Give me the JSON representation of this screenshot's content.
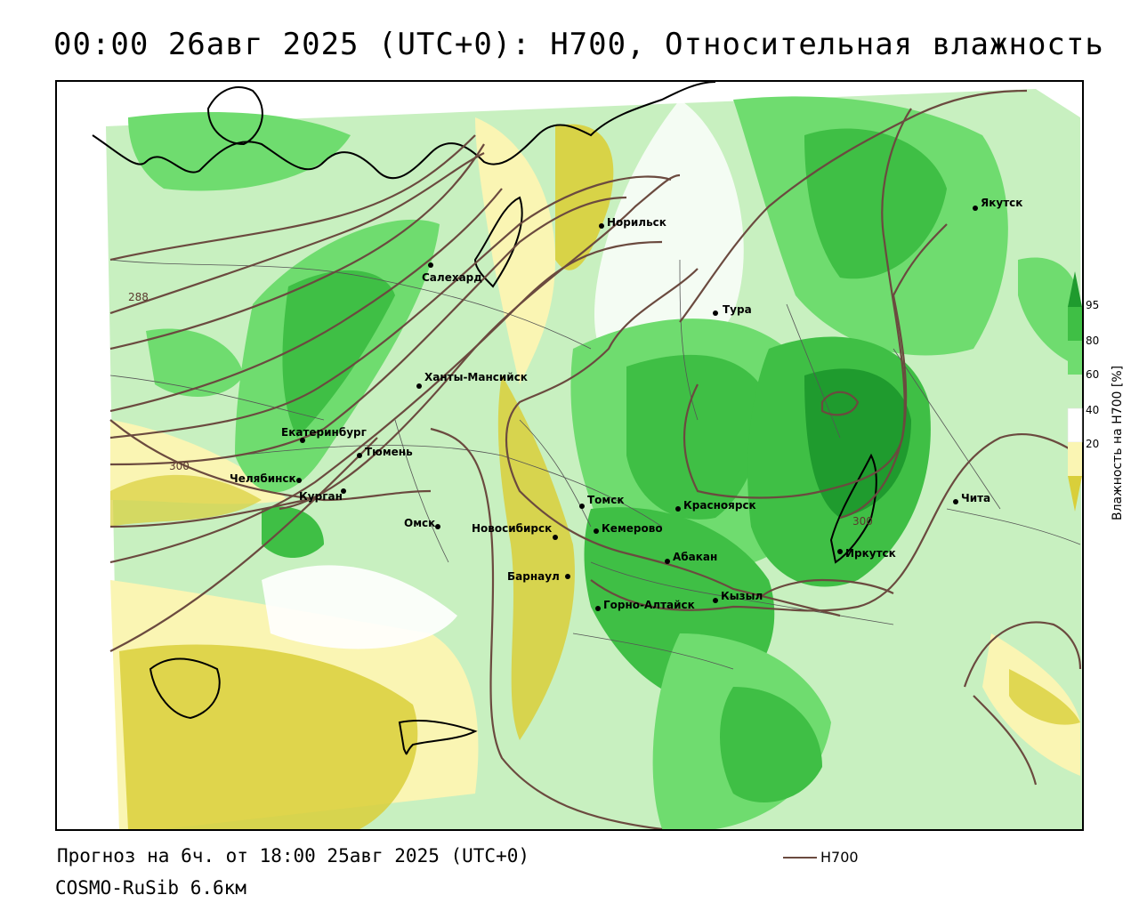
{
  "header": {
    "title": "00:00 26авг 2025 (UTC+0): H700, Относительная влажность"
  },
  "map": {
    "cities": [
      {
        "name": "Якутск"
      },
      {
        "name": "Норильск"
      },
      {
        "name": "Салехард"
      },
      {
        "name": "Тура"
      },
      {
        "name": "Ханты-Мансийск"
      },
      {
        "name": "Екатеринбург"
      },
      {
        "name": "Тюмень"
      },
      {
        "name": "Челябинск"
      },
      {
        "name": "Курган"
      },
      {
        "name": "Омск"
      },
      {
        "name": "Новосибирск"
      },
      {
        "name": "Томск"
      },
      {
        "name": "Кемерово"
      },
      {
        "name": "Красноярск"
      },
      {
        "name": "Абакан"
      },
      {
        "name": "Барнаул"
      },
      {
        "name": "Горно-Алтайск"
      },
      {
        "name": "Кызыл"
      },
      {
        "name": "Иркутск"
      },
      {
        "name": "Чита"
      }
    ],
    "contour_labels": [
      "288",
      "300",
      "300"
    ],
    "colors": {
      "dry_strong": "#d9cf3a",
      "dry_light": "#faf5b3",
      "neutral": "#ffffff",
      "wet_light": "#c8f0c0",
      "wet_medium": "#6fdc6f",
      "wet_high": "#3fbf45",
      "wet_max": "#1f9b2e",
      "contour": "#6b4a3f",
      "coastline": "#000000"
    }
  },
  "legend": {
    "ticks": [
      "95",
      "80",
      "60",
      "40",
      "20"
    ],
    "title": "Влажность на H700 [%]"
  },
  "footer": {
    "forecast": "Прогноз на 6ч. от 18:00 25авг 2025 (UTC+0)",
    "model": "COSMO-RuSib 6.6км",
    "series_label": "H700"
  }
}
